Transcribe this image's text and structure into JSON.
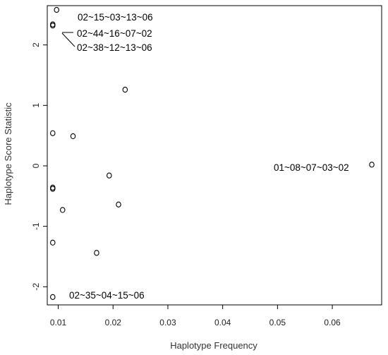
{
  "chart_data": {
    "type": "scatter",
    "title": "",
    "xlabel": "Haplotype Frequency",
    "ylabel": "Haplotype Score Statistic",
    "xlim": [
      0.008,
      0.069
    ],
    "ylim": [
      -2.3,
      2.65
    ],
    "xticks": [
      {
        "value": 0.01,
        "label": "0.01"
      },
      {
        "value": 0.02,
        "label": "0.02"
      },
      {
        "value": 0.03,
        "label": "0.03"
      },
      {
        "value": 0.04,
        "label": "0.04"
      },
      {
        "value": 0.05,
        "label": "0.05"
      },
      {
        "value": 0.06,
        "label": "0.06"
      }
    ],
    "yticks": [
      {
        "value": -2,
        "label": "-2"
      },
      {
        "value": -1,
        "label": "-1"
      },
      {
        "value": 0,
        "label": "0"
      },
      {
        "value": 1,
        "label": "1"
      },
      {
        "value": 2,
        "label": "2"
      }
    ],
    "grid": false,
    "legend": "none",
    "marker": "o",
    "points": [
      {
        "x": 0.0097,
        "y": 2.58
      },
      {
        "x": 0.009,
        "y": 2.34
      },
      {
        "x": 0.009,
        "y": 2.32
      },
      {
        "x": 0.0222,
        "y": 1.26
      },
      {
        "x": 0.009,
        "y": 0.54
      },
      {
        "x": 0.0127,
        "y": 0.49
      },
      {
        "x": 0.0672,
        "y": 0.02
      },
      {
        "x": 0.0193,
        "y": -0.16
      },
      {
        "x": 0.009,
        "y": -0.36
      },
      {
        "x": 0.009,
        "y": -0.38
      },
      {
        "x": 0.021,
        "y": -0.64
      },
      {
        "x": 0.0108,
        "y": -0.73
      },
      {
        "x": 0.009,
        "y": -1.27
      },
      {
        "x": 0.017,
        "y": -1.44
      },
      {
        "x": 0.009,
        "y": -2.17
      }
    ],
    "annotations": [
      {
        "text": "02~15~03~13~06",
        "x": 0.0097,
        "y": 2.58
      },
      {
        "text": "02~44~16~07~02",
        "x": 0.009,
        "y": 2.34
      },
      {
        "text": "02~38~12~13~06",
        "x": 0.009,
        "y": 2.32
      },
      {
        "text": "01~08~07~03~02",
        "x": 0.0672,
        "y": 0.02
      },
      {
        "text": "02~35~04~15~06",
        "x": 0.009,
        "y": -2.17
      }
    ]
  }
}
